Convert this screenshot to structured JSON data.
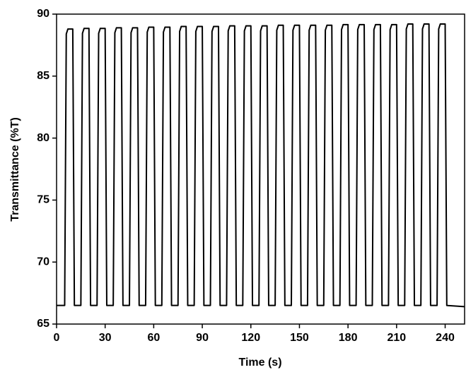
{
  "chart_data": {
    "type": "line",
    "xlabel": "Time (s)",
    "ylabel": "Transmittance (%T)",
    "xlim": [
      0,
      252
    ],
    "ylim": [
      65,
      90
    ],
    "xticks": [
      0,
      30,
      60,
      90,
      120,
      150,
      180,
      210,
      240
    ],
    "yticks": [
      65,
      70,
      75,
      80,
      85,
      90
    ],
    "color": "#000000",
    "x": [
      0,
      5,
      6,
      7,
      10,
      11,
      15,
      16,
      17,
      20,
      21,
      25,
      26,
      27,
      30,
      31,
      35,
      36,
      37,
      40,
      41,
      45,
      46,
      47,
      50,
      51,
      55,
      56,
      57,
      60,
      61,
      65,
      66,
      67,
      70,
      71,
      75,
      76,
      77,
      80,
      81,
      85,
      86,
      87,
      90,
      91,
      95,
      96,
      97,
      100,
      101,
      105,
      106,
      107,
      110,
      111,
      115,
      116,
      117,
      120,
      121,
      125,
      126,
      127,
      130,
      131,
      135,
      136,
      137,
      140,
      141,
      145,
      146,
      147,
      150,
      151,
      155,
      156,
      157,
      160,
      161,
      165,
      166,
      167,
      170,
      171,
      175,
      176,
      177,
      180,
      181,
      185,
      186,
      187,
      190,
      191,
      195,
      196,
      197,
      200,
      201,
      205,
      206,
      207,
      210,
      211,
      215,
      216,
      217,
      220,
      221,
      225,
      226,
      227,
      230,
      231,
      235,
      236,
      237,
      240,
      241,
      252
    ],
    "values": [
      66.5,
      66.5,
      88.4,
      88.8,
      88.8,
      66.5,
      66.5,
      88.45,
      88.85,
      88.85,
      66.5,
      66.5,
      88.45,
      88.85,
      88.85,
      66.5,
      66.5,
      88.5,
      88.9,
      88.9,
      66.5,
      66.5,
      88.5,
      88.9,
      88.9,
      66.5,
      66.5,
      88.55,
      88.95,
      88.95,
      66.5,
      66.5,
      88.55,
      88.95,
      88.95,
      66.5,
      66.5,
      88.6,
      89.0,
      89.0,
      66.5,
      66.5,
      88.6,
      89.0,
      89.0,
      66.5,
      66.5,
      88.6,
      89.0,
      89.0,
      66.5,
      66.5,
      88.65,
      89.05,
      89.05,
      66.5,
      66.5,
      88.65,
      89.05,
      89.05,
      66.5,
      66.5,
      88.65,
      89.05,
      89.05,
      66.5,
      66.5,
      88.7,
      89.1,
      89.1,
      66.5,
      66.5,
      88.7,
      89.1,
      89.1,
      66.5,
      66.5,
      88.7,
      89.1,
      89.1,
      66.5,
      66.5,
      88.7,
      89.1,
      89.1,
      66.5,
      66.5,
      88.75,
      89.15,
      89.15,
      66.5,
      66.5,
      88.75,
      89.15,
      89.15,
      66.5,
      66.5,
      88.75,
      89.15,
      89.15,
      66.5,
      66.5,
      88.75,
      89.15,
      89.15,
      66.5,
      66.5,
      88.8,
      89.2,
      89.2,
      66.5,
      66.5,
      88.8,
      89.2,
      89.2,
      66.5,
      66.5,
      88.8,
      89.2,
      89.2,
      66.5,
      66.4
    ]
  }
}
